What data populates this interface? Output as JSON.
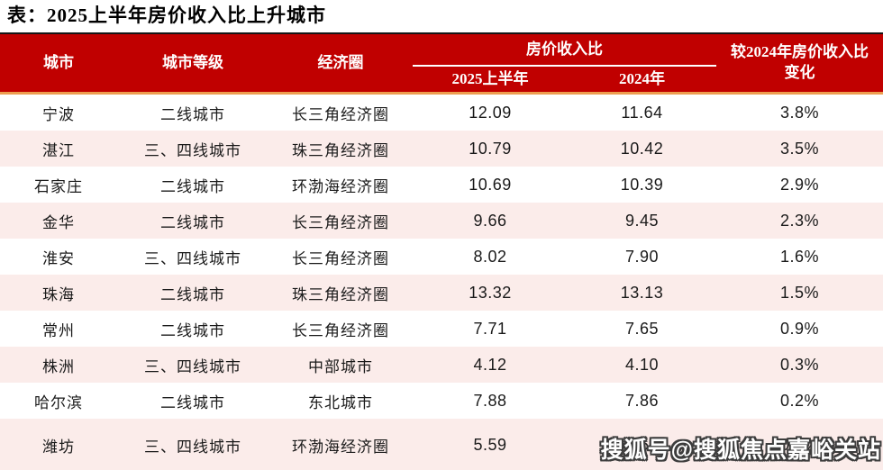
{
  "page_title": "表：2025上半年房价收入比上升城市",
  "header": {
    "city": "城市",
    "tier": "城市等级",
    "region": "经济圈",
    "ratio_group": "房价收入比",
    "h1_2025": "2025上半年",
    "y2024": "2024年",
    "change": "较2024年房价收入比变化"
  },
  "chart_data": {
    "type": "table",
    "title": "表：2025上半年房价收入比上升城市",
    "columns": [
      "城市",
      "城市等级",
      "经济圈",
      "房价收入比 2025上半年",
      "房价收入比 2024年",
      "较2024年房价收入比变化"
    ],
    "rows": [
      [
        "宁波",
        "二线城市",
        "长三角经济圈",
        "12.09",
        "11.64",
        "3.8%"
      ],
      [
        "湛江",
        "三、四线城市",
        "珠三角经济圈",
        "10.79",
        "10.42",
        "3.5%"
      ],
      [
        "石家庄",
        "二线城市",
        "环渤海经济圈",
        "10.69",
        "10.39",
        "2.9%"
      ],
      [
        "金华",
        "二线城市",
        "长三角经济圈",
        "9.66",
        "9.45",
        "2.3%"
      ],
      [
        "淮安",
        "三、四线城市",
        "长三角经济圈",
        "8.02",
        "7.90",
        "1.6%"
      ],
      [
        "珠海",
        "二线城市",
        "珠三角经济圈",
        "13.32",
        "13.13",
        "1.5%"
      ],
      [
        "常州",
        "二线城市",
        "长三角经济圈",
        "7.71",
        "7.65",
        "0.9%"
      ],
      [
        "株洲",
        "三、四线城市",
        "中部城市",
        "4.12",
        "4.10",
        "0.3%"
      ],
      [
        "哈尔滨",
        "二线城市",
        "东北城市",
        "7.88",
        "7.86",
        "0.2%"
      ],
      [
        "潍坊",
        "三、四线城市",
        "环渤海经济圈",
        "5.59",
        "5.58",
        "0.2%"
      ]
    ]
  },
  "watermark": "搜狐号@搜狐焦点嘉峪关站",
  "colors": {
    "header_red": "#c00000",
    "accent_orange": "#ed9e50",
    "row_alt_pink": "#fbecea",
    "title_rule": "#161616",
    "watermark_outline": "#3d3d3d"
  }
}
